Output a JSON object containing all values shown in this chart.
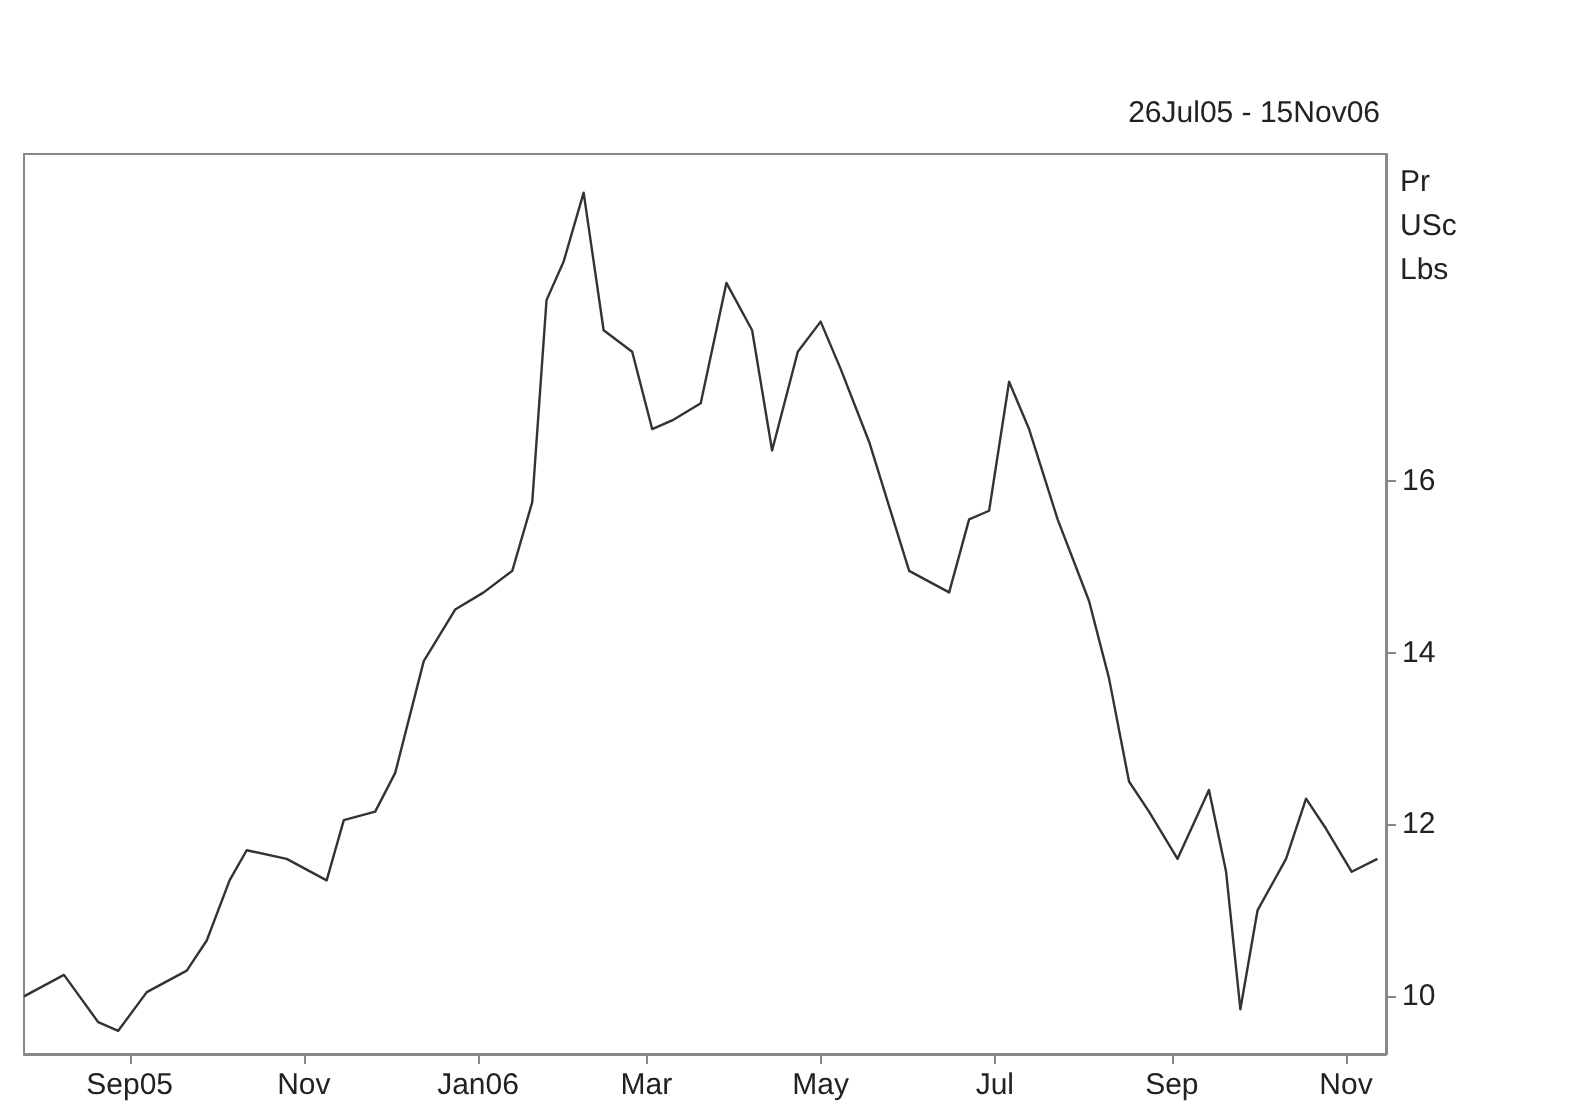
{
  "chart_data": {
    "type": "line",
    "title": "26Jul05 - 15Nov06",
    "ylabel": "Pr USc Lbs",
    "x": [
      "2005-07-26",
      "2005-08-09",
      "2005-08-21",
      "2005-08-28",
      "2005-09-07",
      "2005-09-21",
      "2005-09-28",
      "2005-10-06",
      "2005-10-12",
      "2005-10-26",
      "2005-11-09",
      "2005-11-15",
      "2005-11-26",
      "2005-12-03",
      "2005-12-13",
      "2005-12-24",
      "2006-01-03",
      "2006-01-13",
      "2006-01-20",
      "2006-01-25",
      "2006-01-31",
      "2006-02-07",
      "2006-02-14",
      "2006-02-24",
      "2006-03-03",
      "2006-03-10",
      "2006-03-20",
      "2006-03-29",
      "2006-04-07",
      "2006-04-14",
      "2006-04-23",
      "2006-05-01",
      "2006-05-08",
      "2006-05-18",
      "2006-06-01",
      "2006-06-15",
      "2006-06-22",
      "2006-06-29",
      "2006-07-06",
      "2006-07-13",
      "2006-07-23",
      "2006-08-03",
      "2006-08-10",
      "2006-08-17",
      "2006-08-24",
      "2006-09-03",
      "2006-09-14",
      "2006-09-20",
      "2006-09-25",
      "2006-10-01",
      "2006-10-11",
      "2006-10-18",
      "2006-10-25",
      "2006-11-03",
      "2006-11-12"
    ],
    "series": [
      {
        "color": "#333333",
        "values": [
          10.0,
          10.25,
          9.7,
          9.6,
          10.05,
          10.3,
          10.65,
          11.35,
          11.7,
          11.6,
          11.35,
          12.05,
          12.15,
          12.6,
          13.9,
          14.5,
          14.7,
          14.95,
          15.75,
          18.1,
          18.55,
          19.35,
          17.75,
          17.5,
          16.6,
          16.7,
          16.9,
          18.3,
          17.75,
          16.35,
          17.5,
          17.85,
          17.3,
          16.45,
          14.95,
          14.7,
          15.55,
          15.65,
          17.15,
          16.6,
          15.55,
          14.6,
          13.7,
          12.5,
          12.15,
          11.6,
          12.4,
          11.45,
          9.85,
          11.0,
          11.6,
          12.3,
          11.95,
          11.45,
          11.6
        ]
      }
    ],
    "xlim": [
      "2005-07-26",
      "2006-11-15"
    ],
    "xticks": [
      {
        "value": "2005-09-01",
        "label": "Sep05"
      },
      {
        "value": "2005-11-01",
        "label": "Nov"
      },
      {
        "value": "2006-01-01",
        "label": "Jan06"
      },
      {
        "value": "2006-03-01",
        "label": "Mar"
      },
      {
        "value": "2006-05-01",
        "label": "May"
      },
      {
        "value": "2006-07-01",
        "label": "Jul"
      },
      {
        "value": "2006-09-01",
        "label": "Sep"
      },
      {
        "value": "2006-11-01",
        "label": "Nov"
      }
    ],
    "ylim": [
      9.33,
      19.8
    ],
    "yticks": [
      10,
      12,
      14,
      16
    ],
    "grid": false,
    "marker": "none",
    "line_style": "solid"
  }
}
